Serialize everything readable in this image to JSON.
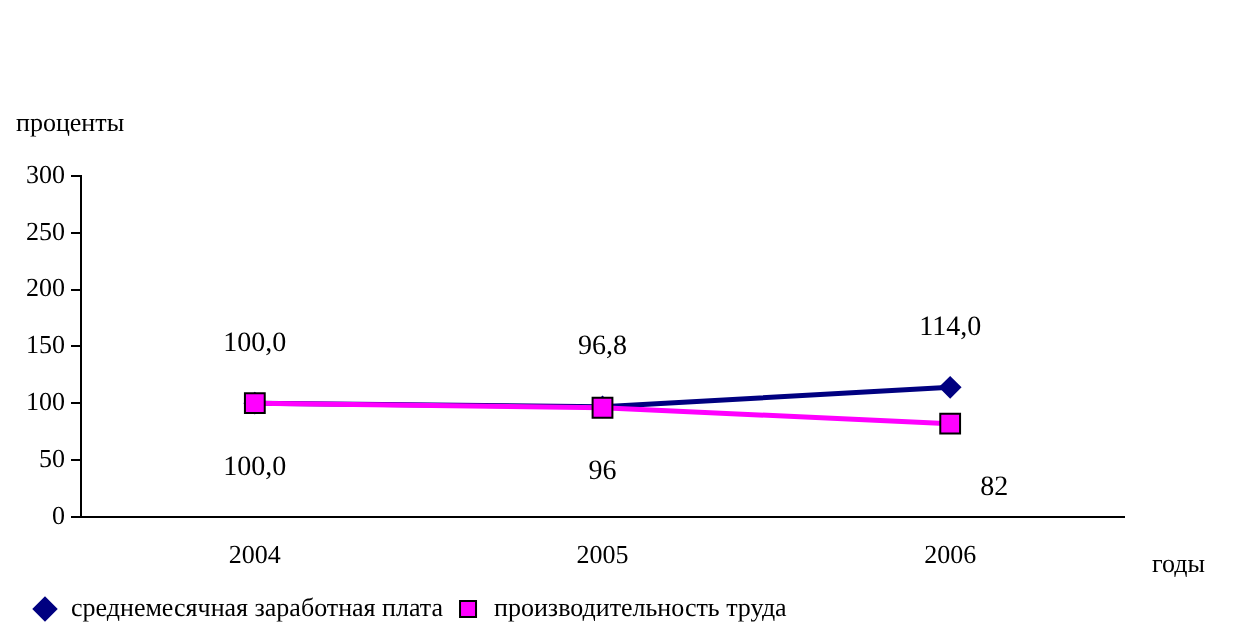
{
  "chart_data": {
    "type": "line",
    "ylabel": "проценты",
    "xlabel": "годы",
    "categories": [
      "2004",
      "2005",
      "2006"
    ],
    "ylim": [
      0,
      300
    ],
    "yticks": [
      0,
      50,
      100,
      150,
      200,
      250,
      300
    ],
    "grid": false,
    "legend": "bottom",
    "series": [
      {
        "name": "среднемесячная заработная плата",
        "color": "#000080",
        "marker": "diamond",
        "values": [
          100,
          96.8,
          114
        ],
        "value_labels": [
          "100,0",
          "96,8",
          "114,0"
        ]
      },
      {
        "name": "производительность труда",
        "color": "#ff00ff",
        "marker": "square",
        "values": [
          100,
          96,
          82
        ],
        "value_labels": [
          "100,0",
          "96",
          "82"
        ]
      }
    ]
  }
}
